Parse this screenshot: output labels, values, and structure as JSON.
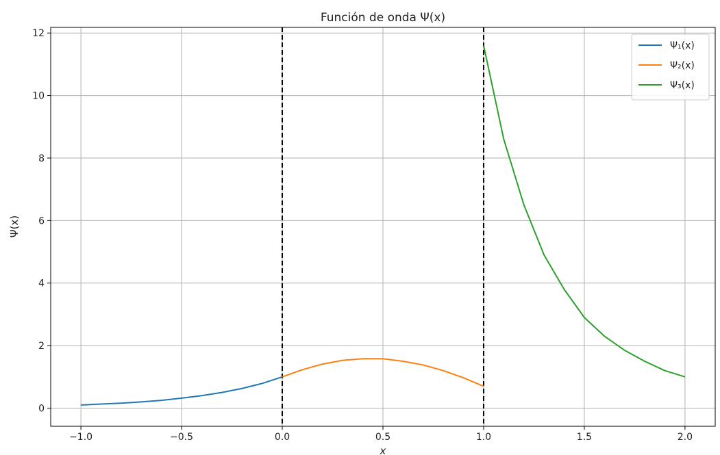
{
  "chart_data": {
    "type": "line",
    "title": "Función de onda Ψ(x)",
    "xlabel": "x",
    "ylabel": "Ψ(x)",
    "xlim": [
      -1.15,
      2.15
    ],
    "ylim": [
      -0.58,
      12.18
    ],
    "xticks": [
      -1.0,
      -0.5,
      0.0,
      0.5,
      1.0,
      1.5,
      2.0
    ],
    "xtick_labels": [
      "−1.0",
      "−0.5",
      "0.0",
      "0.5",
      "1.0",
      "1.5",
      "2.0"
    ],
    "yticks": [
      0,
      2,
      4,
      6,
      8,
      10,
      12
    ],
    "ytick_labels": [
      "0",
      "2",
      "4",
      "6",
      "8",
      "10",
      "12"
    ],
    "grid": true,
    "legend_position": "top-right",
    "vlines": [
      {
        "x": 0.0,
        "color": "#000000",
        "style": "dashed"
      },
      {
        "x": 1.0,
        "color": "#000000",
        "style": "dashed"
      }
    ],
    "series": [
      {
        "name": "Ψ₁(x)",
        "color": "#1f77b4",
        "x": [
          -1.0,
          -0.9,
          -0.8,
          -0.7,
          -0.6,
          -0.5,
          -0.4,
          -0.3,
          -0.2,
          -0.1,
          0.0
        ],
        "y": [
          0.1,
          0.13,
          0.16,
          0.2,
          0.25,
          0.32,
          0.4,
          0.5,
          0.63,
          0.79,
          1.0
        ]
      },
      {
        "name": "Ψ₂(x)",
        "color": "#ff7f0e",
        "x": [
          0.0,
          0.1,
          0.2,
          0.3,
          0.4,
          0.5,
          0.6,
          0.7,
          0.8,
          0.9,
          1.0
        ],
        "y": [
          1.0,
          1.23,
          1.41,
          1.53,
          1.58,
          1.58,
          1.5,
          1.38,
          1.2,
          0.97,
          0.7
        ]
      },
      {
        "name": "Ψ₃(x)",
        "color": "#2ca02c",
        "x": [
          1.0,
          1.1,
          1.2,
          1.3,
          1.4,
          1.5,
          1.6,
          1.7,
          1.8,
          1.9,
          2.0
        ],
        "y": [
          11.6,
          8.6,
          6.5,
          4.9,
          3.8,
          2.9,
          2.3,
          1.85,
          1.5,
          1.2,
          1.0
        ]
      }
    ]
  }
}
